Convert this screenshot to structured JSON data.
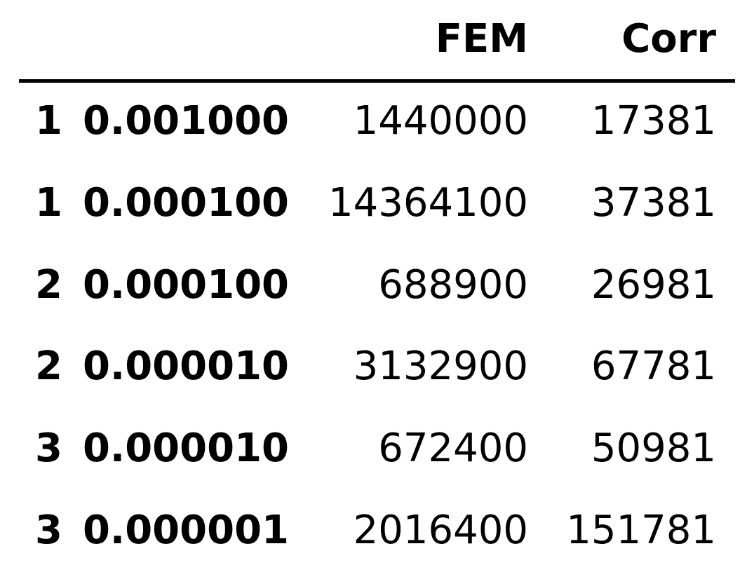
{
  "header": {
    "col_fem": "FEM",
    "col_corr": "Corr"
  },
  "rows": [
    {
      "level0": "1",
      "level1": "0.001000",
      "fem": "1440000",
      "corr": "17381"
    },
    {
      "level0": "1",
      "level1": "0.000100",
      "fem": "14364100",
      "corr": "37381"
    },
    {
      "level0": "2",
      "level1": "0.000100",
      "fem": "688900",
      "corr": "26981"
    },
    {
      "level0": "2",
      "level1": "0.000010",
      "fem": "3132900",
      "corr": "67781"
    },
    {
      "level0": "3",
      "level1": "0.000010",
      "fem": "672400",
      "corr": "50981"
    },
    {
      "level0": "3",
      "level1": "0.000001",
      "fem": "2016400",
      "corr": "151781"
    }
  ]
}
